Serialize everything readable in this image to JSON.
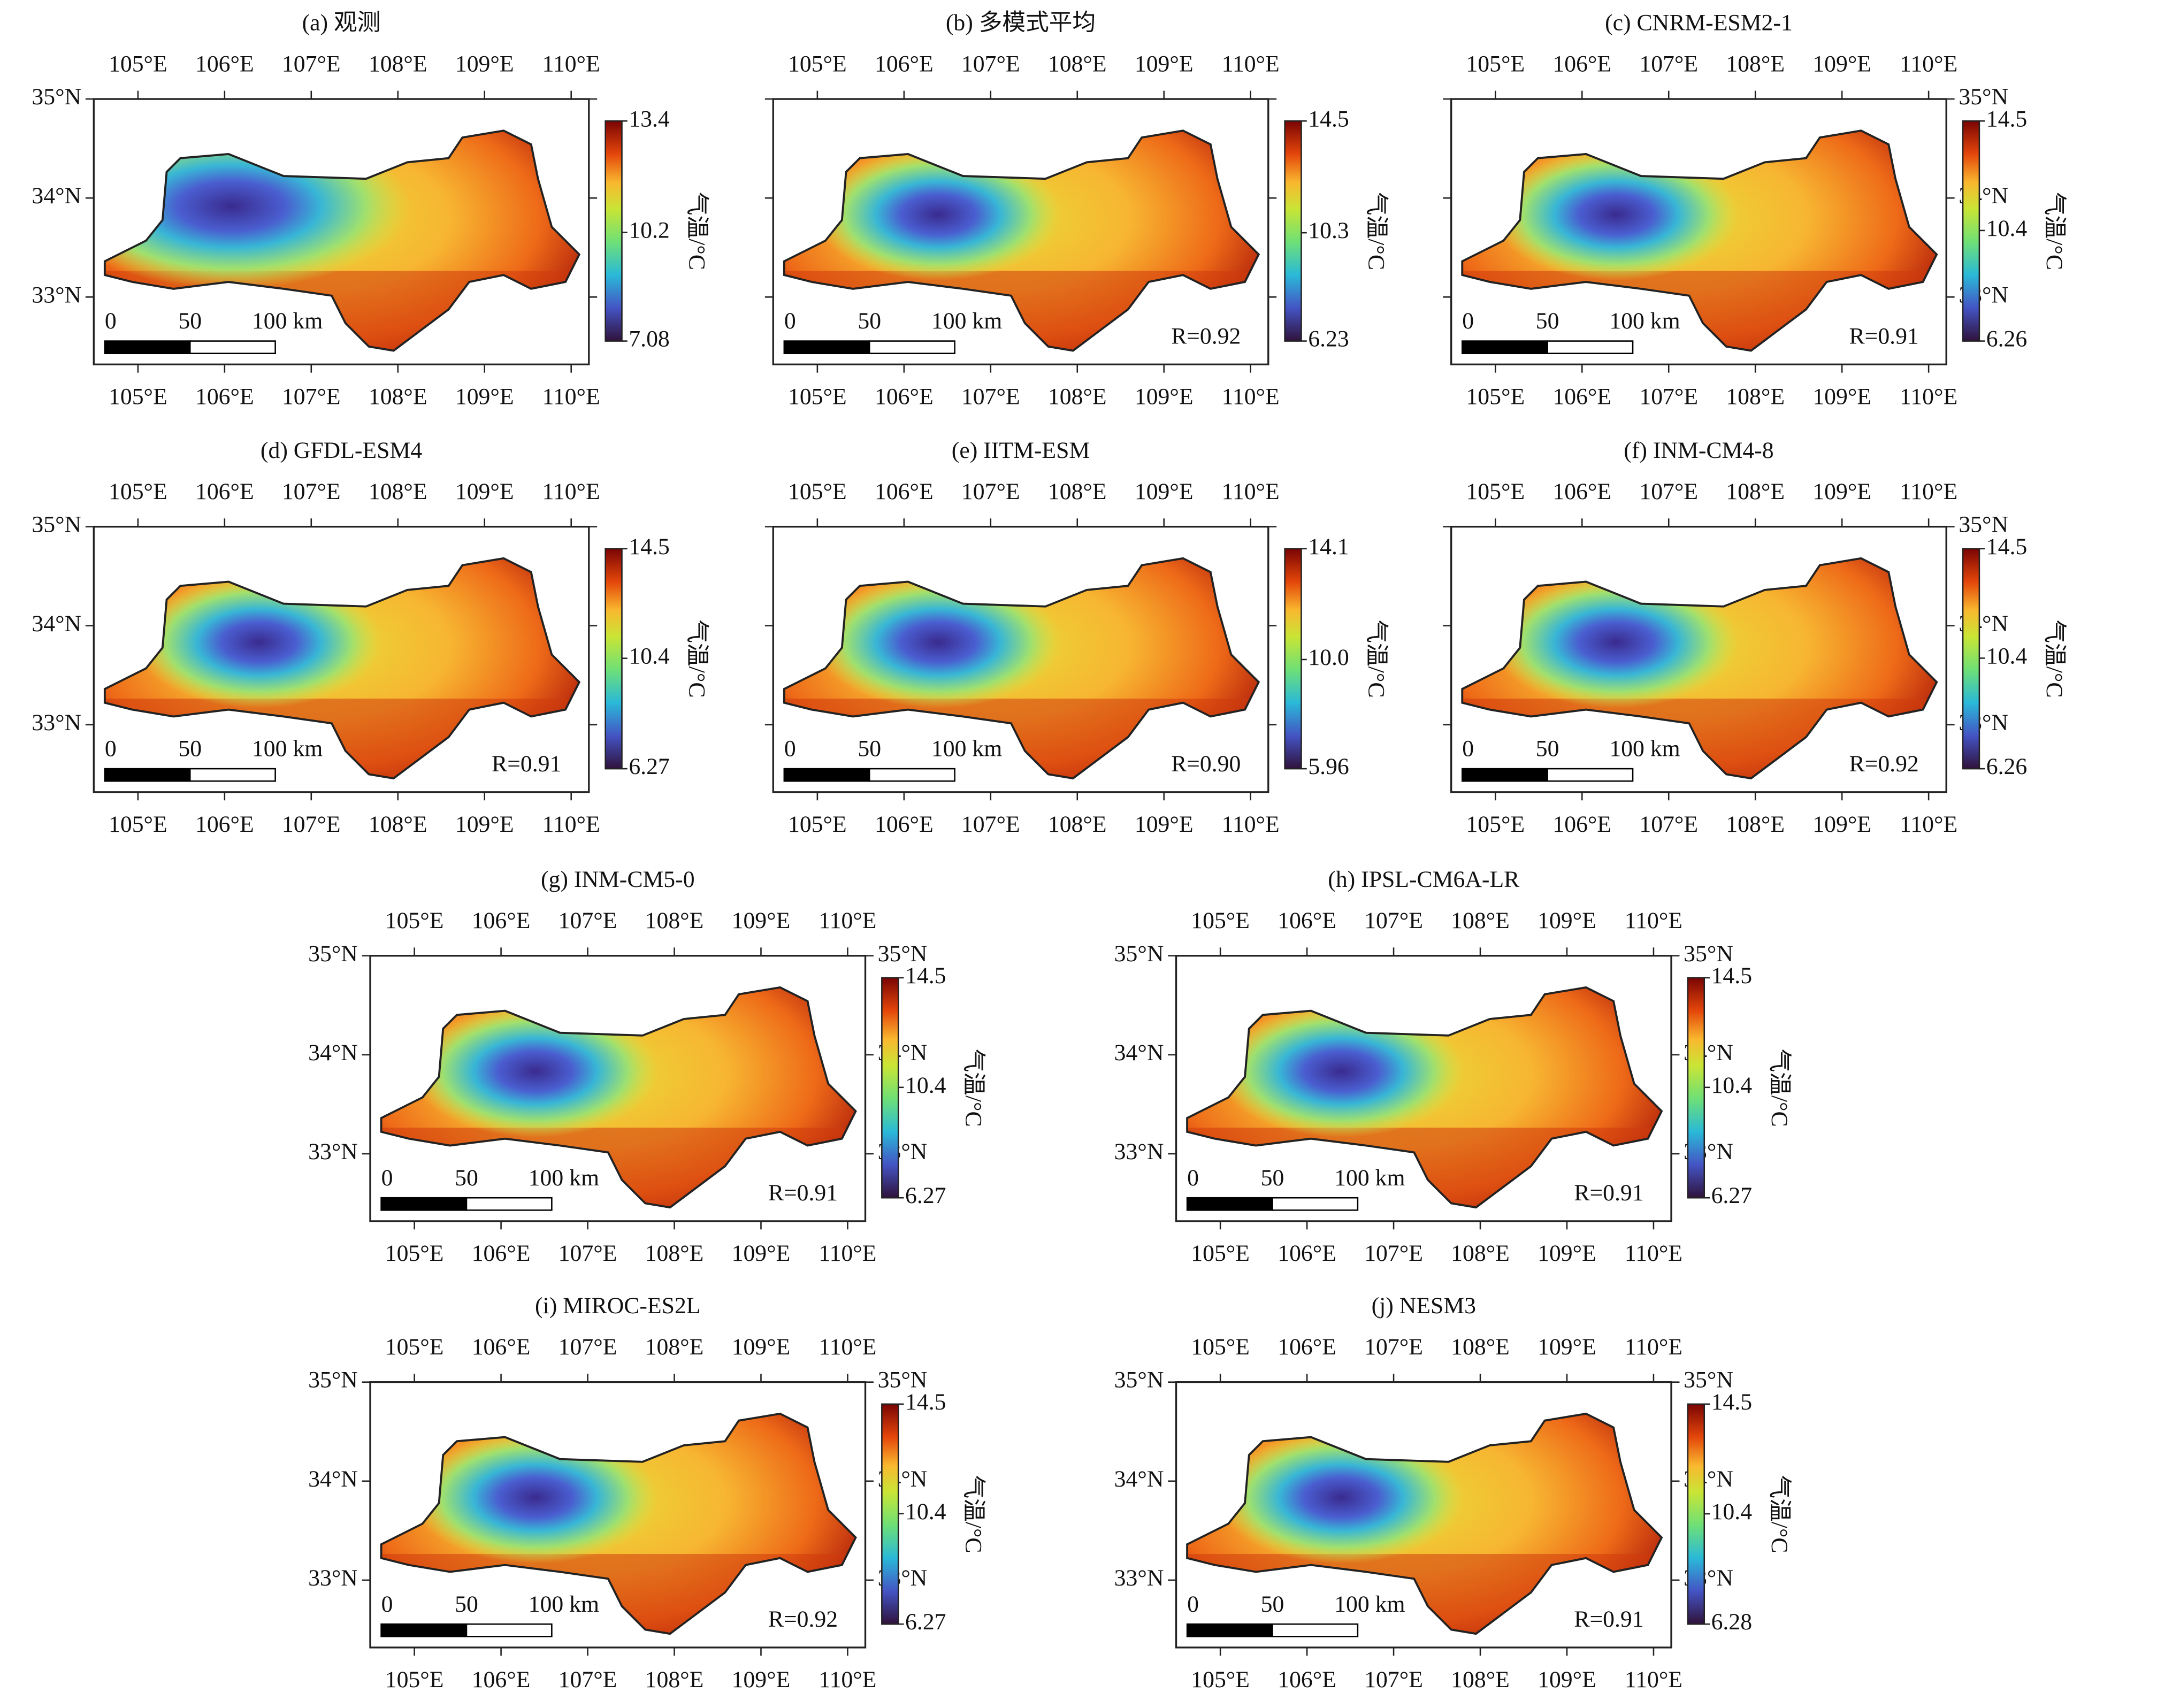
{
  "colorbar_label": "气温/°C",
  "scale_labels": [
    "0",
    "50",
    "100 km"
  ],
  "lon_ticks": [
    {
      "value": 105,
      "label": "105°E"
    },
    {
      "value": 106,
      "label": "106°E"
    },
    {
      "value": 107,
      "label": "107°E"
    },
    {
      "value": 108,
      "label": "108°E"
    },
    {
      "value": 109,
      "label": "109°E"
    },
    {
      "value": 110,
      "label": "110°E"
    }
  ],
  "lat_ticks": [
    {
      "value": 33,
      "label": "33°N"
    },
    {
      "value": 34,
      "label": "34°N"
    },
    {
      "value": 35,
      "label": "35°N"
    }
  ],
  "panels": [
    {
      "title": "(a) 观测",
      "lat_labels": "left",
      "colorbar_ticks": [
        7.08,
        10.2,
        13.4
      ]
    },
    {
      "title": "(b) 多模式平均",
      "lat_labels": "none",
      "colorbar_ticks": [
        6.23,
        10.3,
        14.5
      ],
      "r": {
        "value": 0.92,
        "label": "R=0.92"
      }
    },
    {
      "title": "(c) CNRM-ESM2-1",
      "lat_labels": "right",
      "colorbar_ticks": [
        6.26,
        10.4,
        14.5
      ],
      "r": {
        "value": 0.91,
        "label": "R=0.91"
      }
    },
    {
      "title": "(d) GFDL-ESM4",
      "lat_labels": "left",
      "colorbar_ticks": [
        6.27,
        10.4,
        14.5
      ],
      "r": {
        "value": 0.91,
        "label": "R=0.91"
      }
    },
    {
      "title": "(e) IITM-ESM",
      "lat_labels": "none",
      "colorbar_ticks": [
        5.96,
        {
          "value": 10.0,
          "label": "10.0"
        },
        14.1
      ],
      "r": {
        "value": 0.9,
        "label": "R=0.90"
      }
    },
    {
      "title": "(f) INM-CM4-8",
      "lat_labels": "right",
      "colorbar_ticks": [
        6.26,
        10.4,
        14.5
      ],
      "r": {
        "value": 0.92,
        "label": "R=0.92"
      }
    },
    {
      "title": "(g) INM-CM5-0",
      "lat_labels": "both",
      "colorbar_ticks": [
        6.27,
        10.4,
        14.5
      ],
      "r": {
        "value": 0.91,
        "label": "R=0.91"
      }
    },
    {
      "title": "(h) IPSL-CM6A-LR",
      "lat_labels": "both",
      "colorbar_ticks": [
        6.27,
        10.4,
        14.5
      ],
      "r": {
        "value": 0.91,
        "label": "R=0.91"
      }
    },
    {
      "title": "(i) MIROC-ES2L",
      "lat_labels": "both",
      "colorbar_ticks": [
        6.27,
        10.4,
        14.5
      ],
      "r": {
        "value": 0.92,
        "label": "R=0.92"
      }
    },
    {
      "title": "(j) NESM3",
      "lat_labels": "both",
      "colorbar_ticks": [
        6.28,
        10.4,
        14.5
      ],
      "r": {
        "value": 0.91,
        "label": "R=0.91"
      }
    }
  ]
}
